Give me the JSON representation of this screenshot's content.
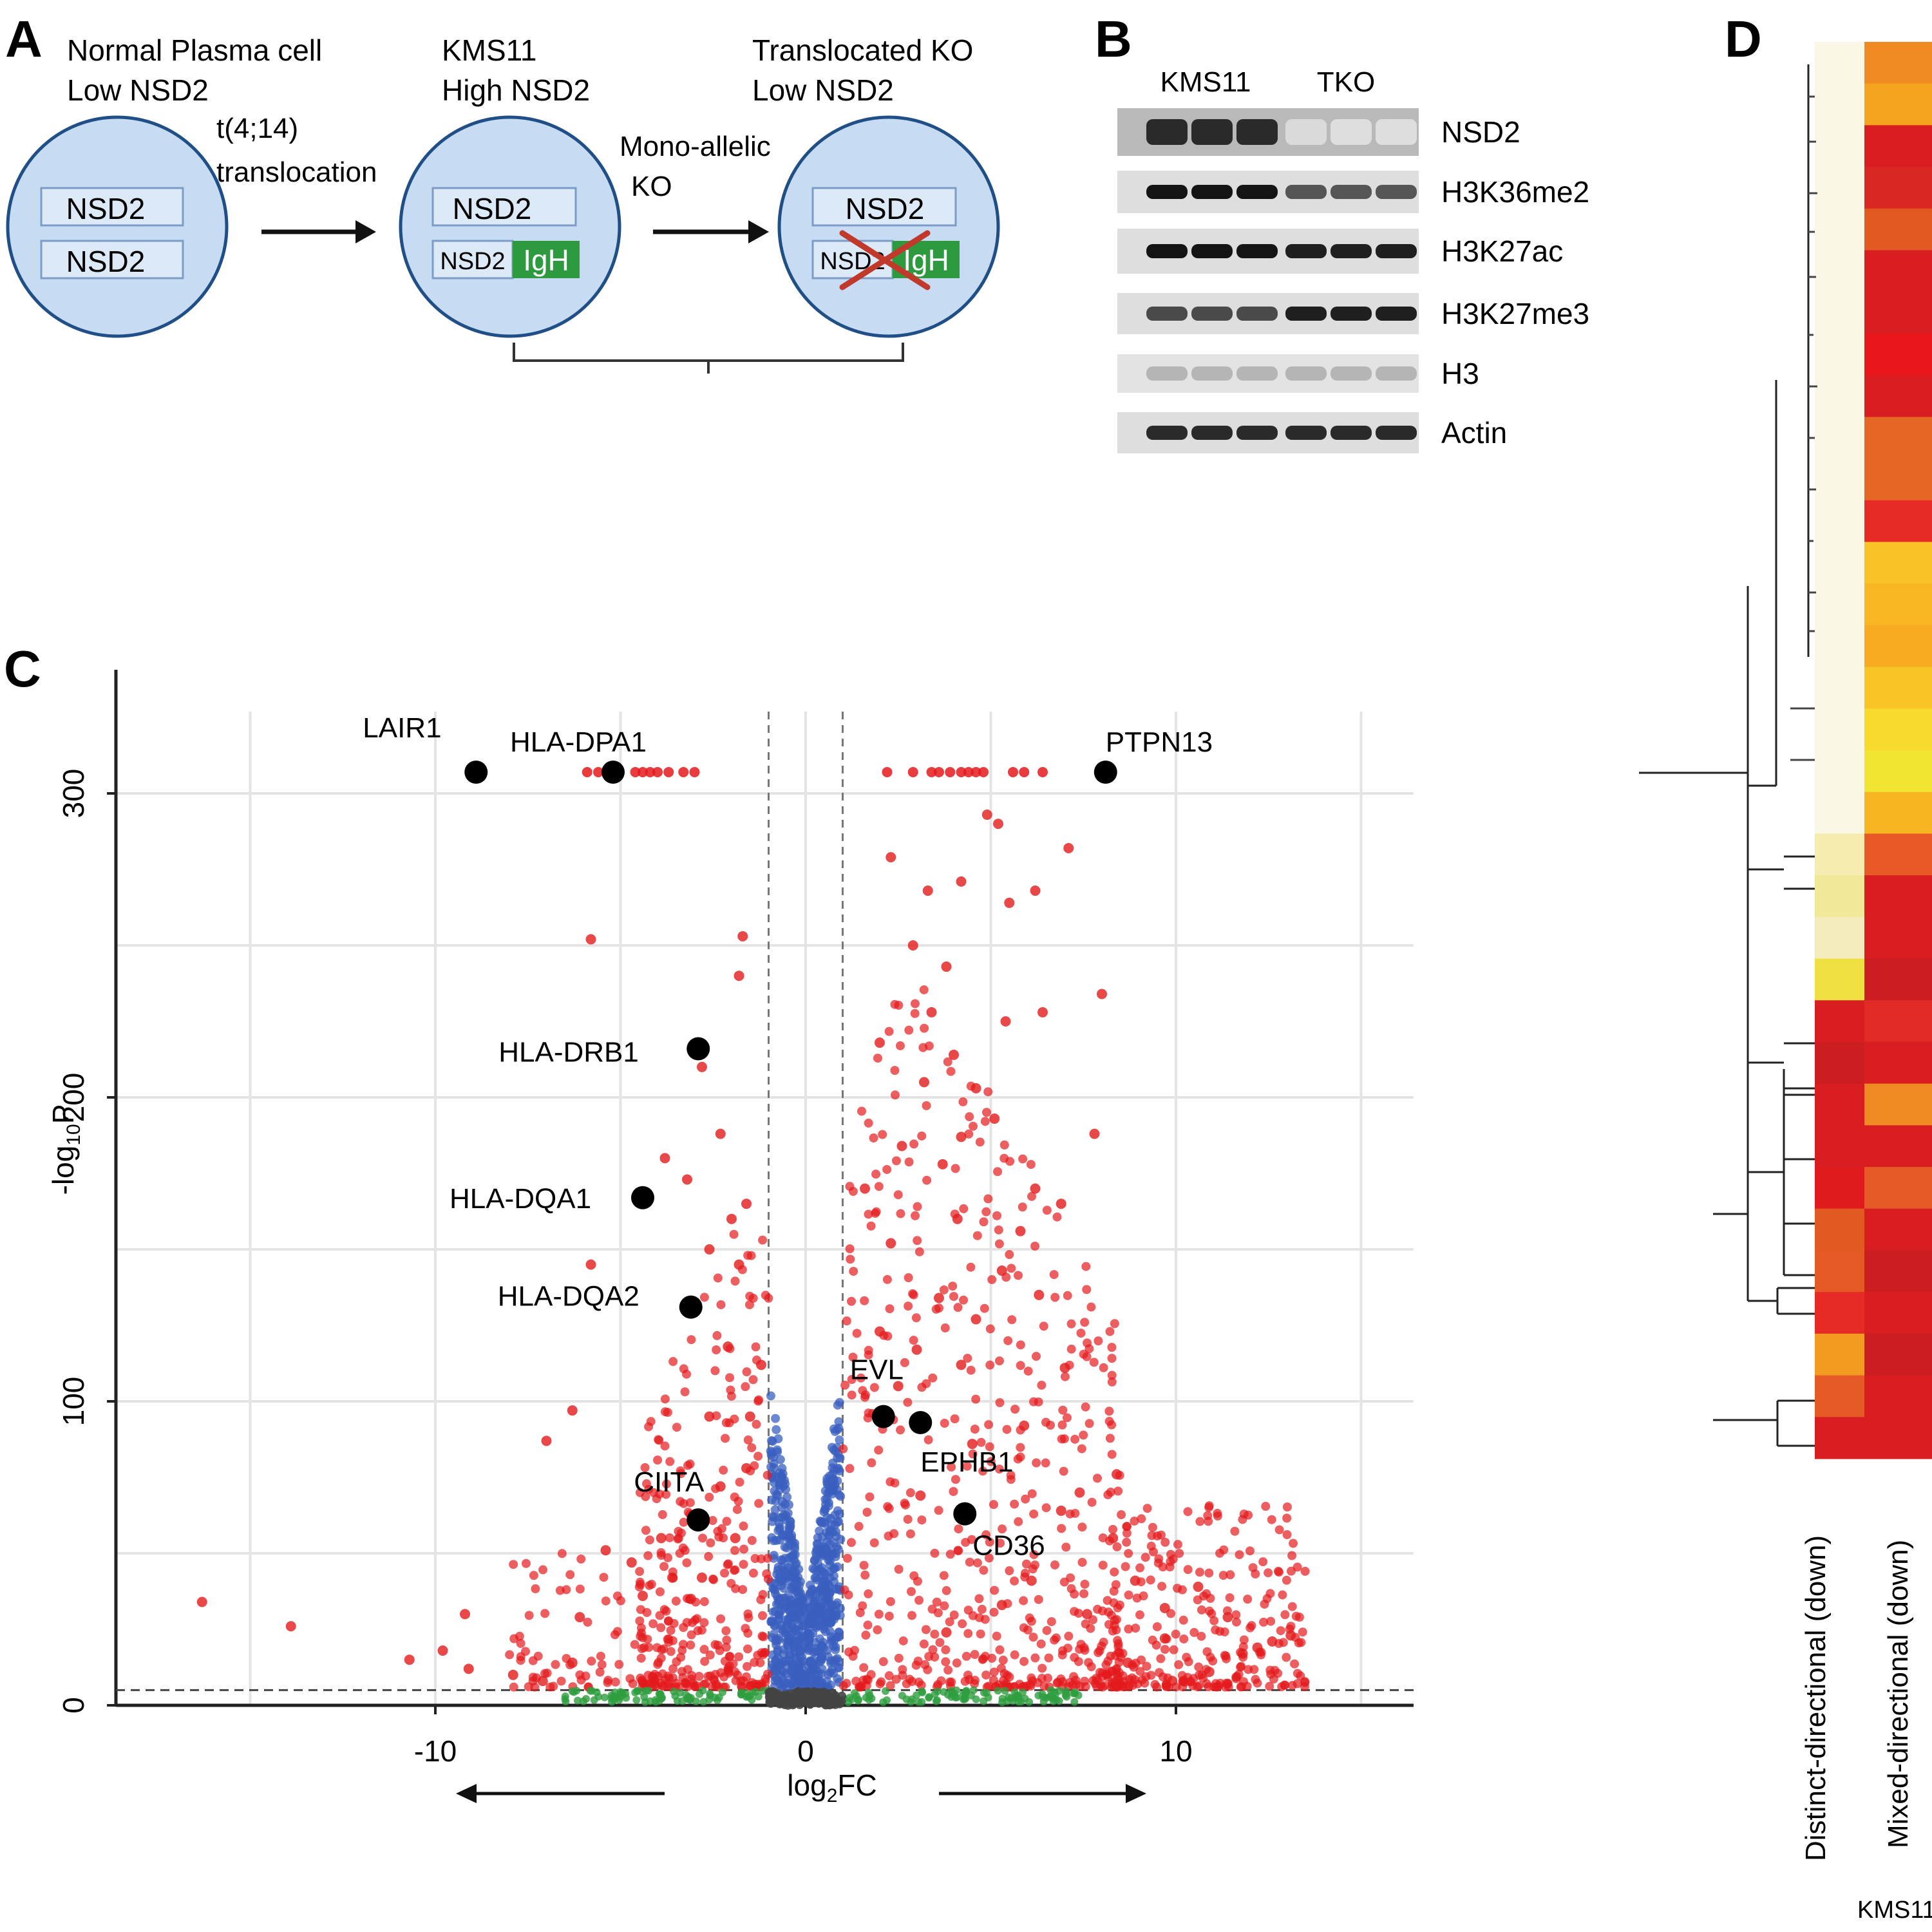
{
  "panel_labels": {
    "a": "A",
    "b": "B",
    "c": "C",
    "d": "D"
  },
  "panel_a": {
    "cell1": {
      "title": "Normal Plasma cell",
      "subtitle": "Low NSD2",
      "genes": [
        "NSD2",
        "NSD2"
      ]
    },
    "step1": {
      "line1": "t(4;14)",
      "line2": "translocation"
    },
    "cell2": {
      "title": "KMS11",
      "subtitle": "High NSD2",
      "gene": "NSD2",
      "fusion_left": "NSD2",
      "fusion_right": "IgH"
    },
    "step2": {
      "line1": "Mono-allelic",
      "line2": "KO"
    },
    "cell3": {
      "title": "Translocated KO",
      "subtitle": "Low NSD2",
      "gene": "NSD2",
      "fusion_left": "NSD2",
      "fusion_right": "IgH"
    }
  },
  "panel_b": {
    "groups": [
      "KMS11",
      "TKO"
    ],
    "bands": [
      {
        "name": "NSD2",
        "kms11": [
          0.9,
          0.9,
          0.9
        ],
        "tko": [
          0.08,
          0.06,
          0.06
        ]
      },
      {
        "name": "H3K36me2",
        "kms11": [
          1.0,
          1.0,
          1.0
        ],
        "tko": [
          0.7,
          0.7,
          0.7
        ]
      },
      {
        "name": "H3K27ac",
        "kms11": [
          1.0,
          1.0,
          1.0
        ],
        "tko": [
          0.95,
          0.95,
          0.95
        ]
      },
      {
        "name": "H3K27me3",
        "kms11": [
          0.75,
          0.75,
          0.75
        ],
        "tko": [
          0.95,
          0.95,
          0.95
        ]
      },
      {
        "name": "H3",
        "kms11": [
          0.25,
          0.25,
          0.25
        ],
        "tko": [
          0.25,
          0.25,
          0.25
        ]
      },
      {
        "name": "Actin",
        "kms11": [
          0.9,
          0.9,
          0.9
        ],
        "tko": [
          0.9,
          0.9,
          0.9
        ]
      }
    ]
  },
  "chart_data": {
    "type": "scatter",
    "xlabel": "log2FC",
    "ylabel": "-log10P",
    "xlim": [
      -19,
      16
    ],
    "ylim": [
      0,
      340
    ],
    "xticks": [
      -10,
      0,
      10
    ],
    "xtick_labels": [
      "-10",
      "0",
      "10"
    ],
    "yticks": [
      0,
      100,
      200,
      300
    ],
    "ytick_labels": [
      "0",
      "100",
      "200",
      "300"
    ],
    "fc_threshold": 1,
    "p_threshold": 5,
    "legend_colors": {
      "significant": "#e41a1c",
      "p_only": "#3a5fbf",
      "fc_only": "#2e9e3e",
      "ns": "#444444",
      "labeled": "#000000"
    },
    "labeled_genes": [
      {
        "gene": "LAIR1",
        "x": -8.9,
        "y": 307
      },
      {
        "gene": "HLA-DPA1",
        "x": -5.2,
        "y": 307
      },
      {
        "gene": "PTPN13",
        "x": 8.1,
        "y": 307
      },
      {
        "gene": "HLA-DRB1",
        "x": -2.9,
        "y": 216
      },
      {
        "gene": "HLA-DQA1",
        "x": -4.4,
        "y": 167
      },
      {
        "gene": "HLA-DQA2",
        "x": -3.1,
        "y": 131
      },
      {
        "gene": "EVL",
        "x": 2.1,
        "y": 95
      },
      {
        "gene": "EPHB1",
        "x": 3.1,
        "y": 93
      },
      {
        "gene": "CIITA",
        "x": -2.9,
        "y": 61
      },
      {
        "gene": "CD36",
        "x": 4.3,
        "y": 63
      }
    ],
    "capped_points_x": [
      -5.9,
      -5.6,
      -4.6,
      -4.4,
      -4.2,
      -4.0,
      -3.7,
      -3.3,
      -3.0,
      2.2,
      2.9,
      3.4,
      3.6,
      3.9,
      4.2,
      4.4,
      4.6,
      4.8,
      5.6,
      5.9,
      6.4
    ],
    "scatter_points": [
      [
        -16.3,
        34
      ],
      [
        -13.9,
        26
      ],
      [
        -9.2,
        30
      ],
      [
        -10.7,
        15
      ],
      [
        -9.8,
        18
      ],
      [
        -9.1,
        12
      ],
      [
        -7.9,
        10
      ],
      [
        -7.1,
        8
      ],
      [
        -6.3,
        14
      ],
      [
        -7.0,
        87
      ],
      [
        -6.3,
        97
      ],
      [
        -5.8,
        145
      ],
      [
        -5.8,
        252
      ],
      [
        -3.8,
        180
      ],
      [
        -3.2,
        173
      ],
      [
        -2.8,
        210
      ],
      [
        -2.3,
        188
      ],
      [
        -1.7,
        253
      ],
      [
        -1.8,
        240
      ],
      [
        -4.7,
        47
      ],
      [
        -4.4,
        36
      ],
      [
        -3.9,
        55
      ],
      [
        -3.6,
        42
      ],
      [
        -5.4,
        51
      ],
      [
        -6.1,
        29
      ],
      [
        -2.6,
        150
      ],
      [
        -2.0,
        160
      ],
      [
        -1.6,
        165
      ],
      [
        -1.8,
        145
      ],
      [
        -1.2,
        112
      ],
      [
        -2.1,
        118
      ],
      [
        -1.5,
        95
      ],
      [
        -2.6,
        95
      ],
      [
        -3.1,
        35
      ],
      [
        -2.8,
        42
      ],
      [
        -2.3,
        72
      ],
      [
        -1.6,
        78
      ],
      [
        -1.9,
        55
      ],
      [
        2.0,
        123
      ],
      [
        1.6,
        170
      ],
      [
        2.3,
        152
      ],
      [
        2.6,
        184
      ],
      [
        2.9,
        250
      ],
      [
        3.4,
        228
      ],
      [
        3.8,
        243
      ],
      [
        3.2,
        205
      ],
      [
        2.0,
        218
      ],
      [
        4.2,
        187
      ],
      [
        4.6,
        203
      ],
      [
        5.1,
        193
      ],
      [
        5.4,
        225
      ],
      [
        6.4,
        228
      ],
      [
        5.5,
        264
      ],
      [
        4.9,
        293
      ],
      [
        5.2,
        290
      ],
      [
        6.2,
        268
      ],
      [
        7.1,
        282
      ],
      [
        8.0,
        234
      ],
      [
        7.8,
        188
      ],
      [
        6.9,
        165
      ],
      [
        6.2,
        170
      ],
      [
        5.8,
        156
      ],
      [
        5.3,
        143
      ],
      [
        6.3,
        135
      ],
      [
        4.6,
        127
      ],
      [
        4.2,
        112
      ],
      [
        3.6,
        134
      ],
      [
        3.0,
        117
      ],
      [
        2.5,
        105
      ],
      [
        4.1,
        160
      ],
      [
        8.4,
        76
      ],
      [
        8.3,
        55
      ],
      [
        8.9,
        41
      ],
      [
        9.7,
        32
      ],
      [
        10.6,
        39
      ],
      [
        11.4,
        29
      ],
      [
        11.8,
        17
      ],
      [
        12.2,
        19
      ],
      [
        12.6,
        21
      ],
      [
        13.1,
        23
      ],
      [
        10.9,
        11
      ],
      [
        9.7,
        22
      ],
      [
        6.9,
        64
      ],
      [
        7.4,
        70
      ],
      [
        6.1,
        41
      ],
      [
        5.3,
        33
      ],
      [
        4.5,
        86
      ],
      [
        3.1,
        69
      ],
      [
        5.9,
        92
      ],
      [
        7.0,
        111
      ],
      [
        3.8,
        24
      ],
      [
        7.6,
        30
      ],
      [
        8.7,
        14
      ],
      [
        9.9,
        8
      ],
      [
        3.3,
        268
      ],
      [
        2.3,
        279
      ],
      [
        4.2,
        271
      ],
      [
        3.7,
        178
      ],
      [
        4.0,
        214
      ]
    ]
  },
  "panel_d": {
    "columns": [
      "Distinct-directional (down)",
      "Mixed-directional (down)"
    ],
    "footer": "KMS11",
    "rows": [
      [
        "#fbf7e7",
        "#f08a22"
      ],
      [
        "#fbf7e7",
        "#f5a41f"
      ],
      [
        "#fbf7e7",
        "#d91e22"
      ],
      [
        "#fbf7e7",
        "#d92723"
      ],
      [
        "#fbf7e7",
        "#e25a22"
      ],
      [
        "#fbf7e7",
        "#d91e22"
      ],
      [
        "#fbf7e7",
        "#d91e22"
      ],
      [
        "#fbf7e7",
        "#e8161b"
      ],
      [
        "#fbf7e7",
        "#d91e22"
      ],
      [
        "#fbf7e7",
        "#e66625"
      ],
      [
        "#fbf7e7",
        "#e66625"
      ],
      [
        "#fbf7e7",
        "#e62a26"
      ],
      [
        "#fbf7e7",
        "#f9c328"
      ],
      [
        "#fbf7e7",
        "#f8b623"
      ],
      [
        "#fbf7e7",
        "#f7ab21"
      ],
      [
        "#fbf7e7",
        "#f8c527"
      ],
      [
        "#fbf7e7",
        "#f8d92e"
      ],
      [
        "#fbf7e7",
        "#f2e532"
      ],
      [
        "#fbf7e7",
        "#f7b522"
      ],
      [
        "#f5ecb1",
        "#e85a25"
      ],
      [
        "#f2e89a",
        "#d91e22"
      ],
      [
        "#f5ecbe",
        "#d91e22"
      ],
      [
        "#efe042",
        "#cc1d20"
      ],
      [
        "#d91e22",
        "#e22a26"
      ],
      [
        "#cc1d20",
        "#d91e22"
      ],
      [
        "#d91e22",
        "#f08a22"
      ],
      [
        "#d91e22",
        "#d91e22"
      ],
      [
        "#e01b1e",
        "#e55a24"
      ],
      [
        "#e25a22",
        "#d91e22"
      ],
      [
        "#e55a24",
        "#cc1d20"
      ],
      [
        "#e62a26",
        "#d91e22"
      ],
      [
        "#f29a22",
        "#cc1d20"
      ],
      [
        "#e55a24",
        "#d91e22"
      ],
      [
        "#d91e22",
        "#d91e22"
      ]
    ]
  }
}
